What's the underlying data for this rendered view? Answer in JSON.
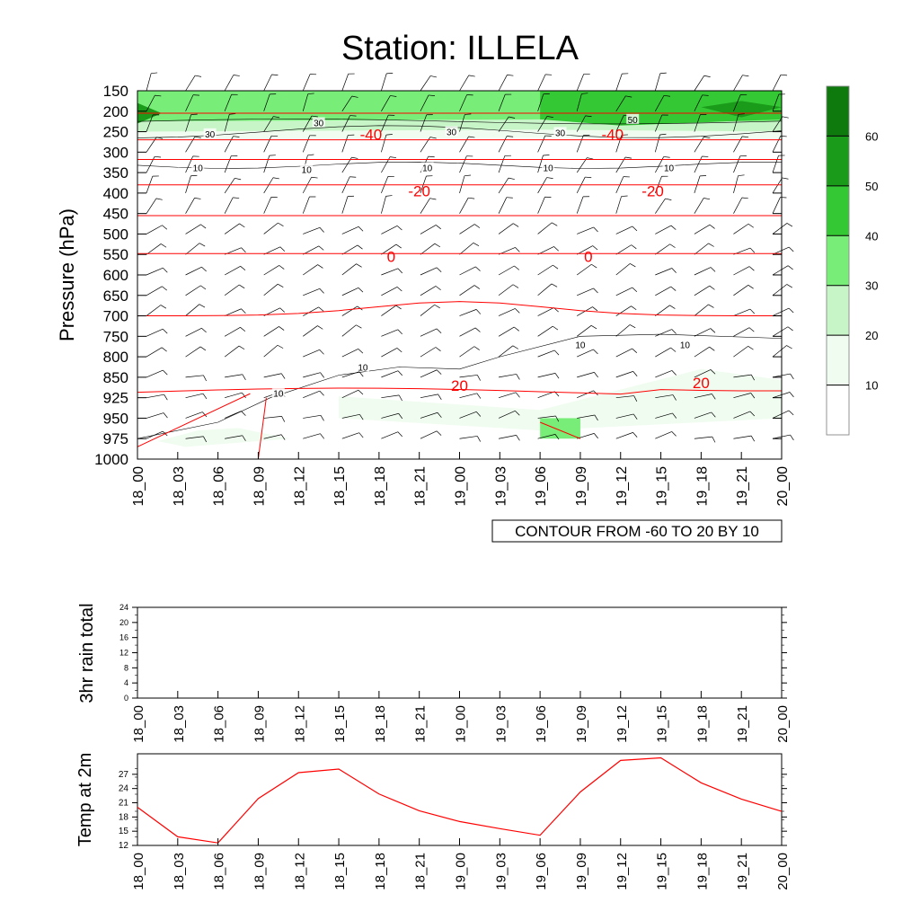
{
  "title": "Station: ILLELA",
  "time_labels": [
    "18_00",
    "18_03",
    "18_06",
    "18_09",
    "18_12",
    "18_15",
    "18_18",
    "18_21",
    "19_00",
    "19_03",
    "19_06",
    "19_09",
    "19_12",
    "19_15",
    "19_18",
    "19_21",
    "20_00"
  ],
  "chart_data": [
    {
      "type": "heatmap",
      "name": "cross-section",
      "ylabel": "Pressure (hPa)",
      "y_levels": [
        150,
        200,
        250,
        300,
        350,
        400,
        450,
        500,
        550,
        600,
        650,
        700,
        750,
        800,
        850,
        925,
        950,
        975,
        1000
      ],
      "fill_levels": [
        10,
        20,
        30,
        40,
        50,
        60
      ],
      "colorbar_ticks": [
        "10",
        "20",
        "30",
        "40",
        "50",
        "60"
      ],
      "colors": {
        "fill": [
          "#ffffff",
          "#f0fcf0",
          "#c8f5c8",
          "#78ee78",
          "#34c934",
          "#1a9b1a",
          "#0e7a0e"
        ],
        "temperature_contour": "#ff0000",
        "wind_contour": "#000000"
      },
      "wind_speed_fill_pressures": {
        "upper_band": [
          {
            "x": "18_00",
            "top": 150,
            "bottom": 270
          },
          {
            "x": "19_06",
            "top": 150,
            "bottom": 265
          },
          {
            "x": "20_00",
            "top": 150,
            "bottom": 270
          }
        ],
        "low_level_band": [
          {
            "x": "18_15",
            "top": 920,
            "bottom": 950
          },
          {
            "x": "19_06",
            "top": 940,
            "bottom": 965
          },
          {
            "x": "19_18",
            "top": 830,
            "bottom": 955
          },
          {
            "x": "20_00",
            "top": 860,
            "bottom": 950
          }
        ]
      },
      "temperature_contours": [
        {
          "label": "-40",
          "pressure": 270
        },
        {
          "label": "",
          "pressure": 318
        },
        {
          "label": "-20",
          "pressure": 380
        },
        {
          "label": "",
          "pressure": 455
        },
        {
          "label": "0",
          "pressure": 548
        },
        {
          "label": "",
          "pressure": 700
        },
        {
          "label": "20",
          "pressure": 900
        },
        {
          "label": "",
          "pressure": 205
        }
      ],
      "wind_contour_labels": [
        "10",
        "10",
        "10",
        "10",
        "10",
        "30",
        "30",
        "30",
        "30",
        "50",
        "10",
        "10",
        "10",
        "10"
      ],
      "temperature_labels": [
        "-40",
        "-40",
        "-20",
        "-20",
        "0",
        "0",
        "20",
        "20"
      ],
      "info_box": "CONTOUR FROM -60 TO 20 BY 10"
    },
    {
      "type": "bar",
      "name": "rain",
      "ylabel": "3hr rain total",
      "ylim": [
        0,
        24
      ],
      "yticks": [
        "0",
        "4",
        "8",
        "12",
        "16",
        "20",
        "24"
      ],
      "values": [
        0,
        0,
        0,
        0,
        0,
        0,
        0,
        0,
        0,
        0,
        0,
        0,
        0,
        0,
        0,
        0,
        0
      ]
    },
    {
      "type": "line",
      "name": "temperature",
      "ylabel": "Temp at 2m",
      "ylim": [
        12,
        30
      ],
      "yticks": [
        "12",
        "15",
        "18",
        "21",
        "24",
        "27"
      ],
      "values": [
        19.5,
        13.7,
        12.5,
        21.2,
        26.3,
        27.0,
        22.1,
        18.8,
        16.7,
        15.3,
        14.0,
        22.5,
        28.7,
        29.2,
        24.3,
        21.1,
        18.7
      ],
      "color": "#ff0000"
    }
  ]
}
